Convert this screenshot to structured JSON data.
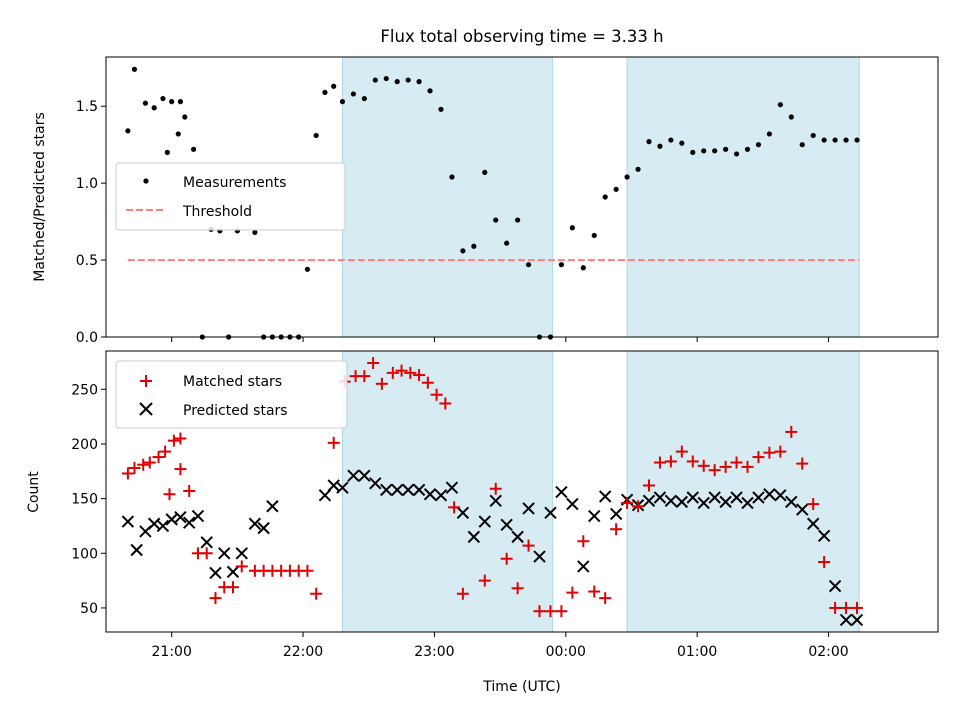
{
  "chart_data": {
    "type": "scatter",
    "title": "Flux total observing time = 3.33 h",
    "x_axis": {
      "label": "Time (UTC)",
      "scale": "time",
      "range": [
        "20:30",
        "02:50"
      ],
      "ticks": [
        "21:00",
        "22:00",
        "23:00",
        "00:00",
        "01:00",
        "02:00"
      ]
    },
    "shaded_intervals": [
      {
        "start": "22:18",
        "end": "23:54"
      },
      {
        "start": "00:28",
        "end": "02:14"
      }
    ],
    "colors": {
      "measurement": "#000000",
      "threshold": "#ff7f7f",
      "matched": "#e00000",
      "predicted": "#000000",
      "shade": "#add8e6"
    },
    "panels": [
      {
        "ylabel": "Matched/Predicted stars",
        "ylim": [
          0,
          1.82
        ],
        "yticks": [
          "0.0",
          "0.5",
          "1.0",
          "1.5"
        ],
        "legend_position": "center-left",
        "threshold": {
          "name": "Threshold",
          "value": 0.5,
          "start": "20:40",
          "end": "02:14"
        },
        "series": [
          {
            "name": "Measurements",
            "marker": "dot",
            "x": [
              "20:40",
              "20:43",
              "20:48",
              "20:52",
              "20:56",
              "21:00",
              "21:04",
              "20:58",
              "21:03",
              "21:06",
              "21:10",
              "21:14",
              "21:18",
              "21:22",
              "21:26",
              "21:30",
              "21:38",
              "21:42",
              "21:46",
              "21:50",
              "21:54",
              "21:58",
              "22:02",
              "22:06",
              "22:10",
              "22:14",
              "22:18",
              "22:23",
              "22:28",
              "22:33",
              "22:38",
              "22:43",
              "22:48",
              "22:53",
              "22:58",
              "23:03",
              "23:08",
              "23:13",
              "23:18",
              "23:23",
              "23:28",
              "23:33",
              "23:38",
              "23:43",
              "23:48",
              "23:53",
              "23:58",
              "00:03",
              "00:08",
              "00:13",
              "00:18",
              "00:23",
              "00:28",
              "00:33",
              "00:38",
              "00:43",
              "00:48",
              "00:53",
              "00:58",
              "01:03",
              "01:08",
              "01:13",
              "01:18",
              "01:23",
              "01:28",
              "01:33",
              "01:38",
              "01:43",
              "01:48",
              "01:53",
              "01:58",
              "02:03",
              "02:08",
              "02:13"
            ],
            "values": [
              1.34,
              1.74,
              1.52,
              1.49,
              1.55,
              1.53,
              1.53,
              1.2,
              1.32,
              1.43,
              1.22,
              0.0,
              0.7,
              0.69,
              0.0,
              0.69,
              0.68,
              0.0,
              0.0,
              0.0,
              0.0,
              0.0,
              0.44,
              1.31,
              1.59,
              1.63,
              1.53,
              1.58,
              1.55,
              1.67,
              1.68,
              1.66,
              1.67,
              1.66,
              1.6,
              1.48,
              1.04,
              0.56,
              0.59,
              1.07,
              0.76,
              0.61,
              0.76,
              0.47,
              0.0,
              0.0,
              0.47,
              0.71,
              0.45,
              0.66,
              0.91,
              0.96,
              1.04,
              1.09,
              1.27,
              1.24,
              1.28,
              1.26,
              1.2,
              1.21,
              1.21,
              1.22,
              1.19,
              1.22,
              1.25,
              1.32,
              1.51,
              1.43,
              1.25,
              1.31,
              1.28,
              1.28,
              1.28,
              1.28
            ]
          }
        ]
      },
      {
        "ylabel": "Count",
        "ylim": [
          28,
          285
        ],
        "yticks": [
          "50",
          "100",
          "150",
          "200",
          "250"
        ],
        "legend_position": "upper-left",
        "x": [
          "20:40",
          "20:43",
          "20:47",
          "20:51",
          "20:55",
          "20:59",
          "21:03",
          "21:07",
          "20:59",
          "21:04",
          "21:09",
          "21:14",
          "21:18",
          "21:22",
          "21:26",
          "21:30",
          "21:34",
          "21:38",
          "21:42",
          "21:47",
          "21:51",
          "21:55",
          "21:59",
          "22:03",
          "22:07",
          "22:11",
          "22:15",
          "22:19",
          "22:23",
          "22:27",
          "22:31",
          "22:35",
          "22:39",
          "22:43",
          "22:47",
          "22:51",
          "22:55",
          "22:59",
          "23:03",
          "23:07",
          "23:11",
          "23:15",
          "23:19",
          "23:23",
          "23:27",
          "23:31",
          "23:35",
          "23:39",
          "23:43",
          "23:47",
          "23:51",
          "23:55",
          "23:59",
          "00:03",
          "00:07",
          "00:11",
          "00:15",
          "00:19",
          "00:23",
          "00:27",
          "00:31",
          "00:35",
          "00:39",
          "00:43",
          "00:47",
          "00:51",
          "00:55",
          "00:59",
          "01:03",
          "01:07",
          "01:11",
          "01:15",
          "01:19",
          "01:23",
          "01:27",
          "01:31",
          "01:35",
          "01:39",
          "01:43",
          "01:47",
          "01:51",
          "01:55",
          "01:59",
          "02:03",
          "02:07",
          "02:11",
          "02:15"
        ],
        "series": [
          {
            "name": "Matched stars",
            "marker": "plus",
            "x": [
              "20:40",
              "20:43",
              "20:47",
              "20:50",
              "20:54",
              "20:57",
              "21:01",
              "21:04",
              "20:59",
              "21:04",
              "21:08",
              "21:12",
              "21:16",
              "21:20",
              "21:24",
              "21:28",
              "21:32",
              "21:38",
              "21:42",
              "21:46",
              "21:50",
              "21:54",
              "21:58",
              "22:02",
              "22:06",
              "22:14",
              "22:19",
              "22:24",
              "22:28",
              "22:32",
              "22:36",
              "22:41",
              "22:45",
              "22:49",
              "22:53",
              "22:57",
              "23:01",
              "23:05",
              "23:09",
              "23:13",
              "23:23",
              "23:28",
              "23:33",
              "23:38",
              "23:43",
              "23:48",
              "23:53",
              "23:58",
              "00:03",
              "00:08",
              "00:13",
              "00:18",
              "00:23",
              "00:28",
              "00:33",
              "00:38",
              "00:43",
              "00:48",
              "00:53",
              "00:58",
              "01:03",
              "01:08",
              "01:13",
              "01:18",
              "01:23",
              "01:28",
              "01:33",
              "01:38",
              "01:43",
              "01:48",
              "01:53",
              "01:58",
              "02:03",
              "02:08",
              "02:13"
            ],
            "values": [
              173,
              178,
              181,
              183,
              188,
              193,
              203,
              205,
              154,
              177,
              157,
              100,
              100,
              59,
              69,
              69,
              88,
              84,
              84,
              84,
              84,
              84,
              84,
              84,
              63,
              201,
              257,
              262,
              262,
              274,
              255,
              265,
              267,
              265,
              263,
              256,
              245,
              237,
              142,
              63,
              75,
              159,
              95,
              68,
              107,
              47,
              47,
              47,
              64,
              111,
              65,
              59,
              122,
              146,
              143,
              162,
              183,
              184,
              193,
              184,
              180,
              176,
              179,
              183,
              179,
              188,
              192,
              193,
              211,
              182,
              145,
              92,
              50,
              50,
              50
            ]
          },
          {
            "name": "Predicted stars",
            "marker": "x",
            "x": [
              "20:40",
              "20:44",
              "20:48",
              "20:52",
              "20:56",
              "21:00",
              "21:04",
              "21:08",
              "21:12",
              "21:16",
              "21:20",
              "21:24",
              "21:28",
              "21:32",
              "21:38",
              "21:42",
              "21:46",
              "22:10",
              "22:14",
              "22:18",
              "22:23",
              "22:28",
              "22:33",
              "22:38",
              "22:43",
              "22:48",
              "22:53",
              "22:58",
              "23:03",
              "23:08",
              "23:13",
              "23:18",
              "23:23",
              "23:28",
              "23:33",
              "23:38",
              "23:43",
              "23:48",
              "23:53",
              "23:58",
              "00:03",
              "00:08",
              "00:13",
              "00:18",
              "00:23",
              "00:28",
              "00:33",
              "00:38",
              "00:43",
              "00:48",
              "00:53",
              "00:58",
              "01:03",
              "01:08",
              "01:13",
              "01:18",
              "01:23",
              "01:28",
              "01:33",
              "01:38",
              "01:43",
              "01:48",
              "01:53",
              "01:58",
              "02:03",
              "02:08",
              "02:13"
            ],
            "values": [
              129,
              103,
              120,
              127,
              125,
              131,
              133,
              128,
              134,
              110,
              82,
              100,
              83,
              100,
              127,
              123,
              143,
              153,
              162,
              160,
              171,
              171,
              164,
              158,
              158,
              158,
              158,
              154,
              153,
              160,
              137,
              115,
              129,
              148,
              126,
              115,
              141,
              97,
              137,
              156,
              145,
              88,
              134,
              152,
              136,
              149,
              144,
              148,
              151,
              148,
              147,
              151,
              146,
              151,
              147,
              151,
              146,
              151,
              154,
              153,
              147,
              140,
              127,
              116,
              70,
              39,
              39
            ]
          }
        ]
      }
    ]
  }
}
